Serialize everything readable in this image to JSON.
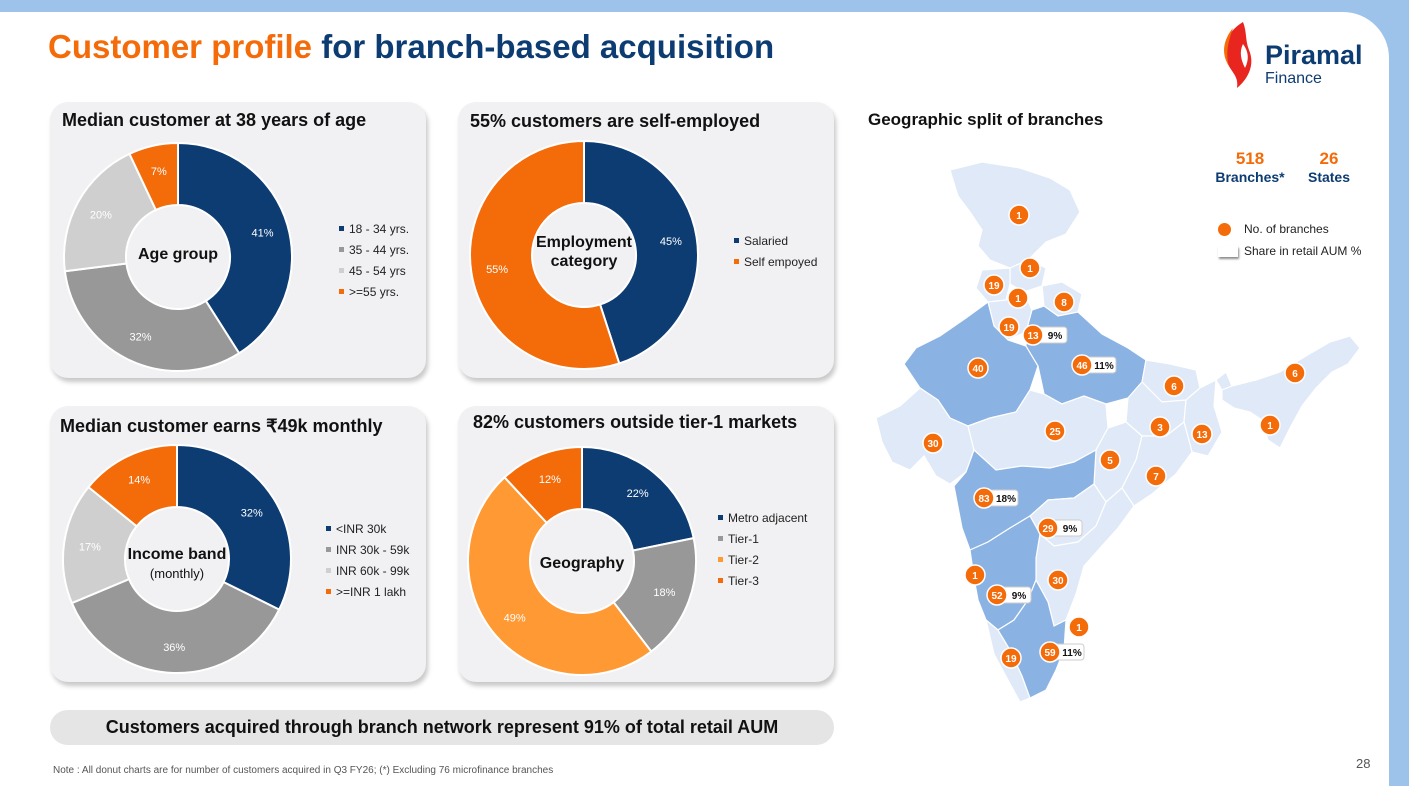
{
  "title": {
    "part1": "Customer profile",
    "part2": "for branch-based acquisition"
  },
  "logo": {
    "name": "Piramal",
    "sub": "Finance"
  },
  "colors": {
    "navy": "#0d3c72",
    "orange": "#f46b0a",
    "grey_dark": "#989898",
    "grey_light": "#cfcfcf",
    "tier2": "#ff9933",
    "map_dark": "#8ab2e3",
    "map_light": "#dfe9f7"
  },
  "cards": {
    "age": {
      "title": "Median customer at 38 years of age",
      "center": "Age group",
      "chart_data": {
        "type": "pie",
        "title": "Median customer at 38 years of age",
        "categories": [
          "18 - 34 yrs.",
          "35 - 44 yrs.",
          "45 - 54 yrs",
          ">=55 yrs."
        ],
        "values": [
          41,
          32,
          20,
          7
        ],
        "labels": [
          "41%",
          "32%",
          "20%",
          "7%"
        ],
        "colors": [
          "#0d3c72",
          "#989898",
          "#cfcfcf",
          "#f46b0a"
        ],
        "legend": "right"
      }
    },
    "employment": {
      "title": "55% customers are self-employed",
      "center_line1": "Employment",
      "center_line2": "category",
      "chart_data": {
        "type": "pie",
        "title": "55% customers are self-employed",
        "categories": [
          "Salaried",
          "Self empoyed"
        ],
        "values": [
          45,
          55
        ],
        "labels": [
          "45%",
          "55%"
        ],
        "colors": [
          "#0d3c72",
          "#f46b0a"
        ],
        "legend": "right"
      }
    },
    "income": {
      "title": "Median customer earns ₹49k monthly",
      "center": "Income band",
      "center_sub": "(monthly)",
      "chart_data": {
        "type": "pie",
        "title": "Median customer earns ₹49k monthly",
        "categories": [
          "<INR 30k",
          "INR 30k - 59k",
          "INR 60k - 99k",
          ">=INR 1 lakh"
        ],
        "values": [
          32,
          36,
          17,
          14
        ],
        "labels": [
          "32%",
          "36%",
          "17%",
          "14%"
        ],
        "colors": [
          "#0d3c72",
          "#989898",
          "#cfcfcf",
          "#f46b0a"
        ],
        "legend": "right"
      }
    },
    "geography": {
      "title": "82% customers outside tier-1 markets",
      "center": "Geography",
      "chart_data": {
        "type": "pie",
        "title": "82% customers outside tier-1 markets",
        "categories": [
          "Metro adjacent",
          "Tier-1",
          "Tier-2",
          "Tier-3"
        ],
        "values": [
          22,
          18,
          49,
          12
        ],
        "labels": [
          "22%",
          "18%",
          "49%",
          "12%"
        ],
        "colors": [
          "#0d3c72",
          "#989898",
          "#ff9933",
          "#f46b0a"
        ],
        "legend": "right"
      }
    }
  },
  "banner": "Customers acquired through branch network represent 91% of total retail AUM",
  "note": "Note : All donut charts are for number of customers acquired in Q3 FY26; (*) Excluding 76 microfinance branches",
  "page_number": "28",
  "map": {
    "title": "Geographic split of branches",
    "stats": [
      {
        "value": "518",
        "label": "Branches*"
      },
      {
        "value": "26",
        "label": "States"
      }
    ],
    "legend": {
      "branches": "No. of branches",
      "share": "Share in retail AUM %"
    },
    "markers": [
      {
        "count": "1"
      },
      {
        "count": "1"
      },
      {
        "count": "19"
      },
      {
        "count": "1"
      },
      {
        "count": "8"
      },
      {
        "count": "19"
      },
      {
        "count": "13",
        "share": "9%"
      },
      {
        "count": "40"
      },
      {
        "count": "46",
        "share": "11%"
      },
      {
        "count": "6"
      },
      {
        "count": "6"
      },
      {
        "count": "30"
      },
      {
        "count": "25"
      },
      {
        "count": "3"
      },
      {
        "count": "13"
      },
      {
        "count": "1"
      },
      {
        "count": "5"
      },
      {
        "count": "7"
      },
      {
        "count": "83",
        "share": "18%"
      },
      {
        "count": "29",
        "share": "9%"
      },
      {
        "count": "1"
      },
      {
        "count": "30"
      },
      {
        "count": "52",
        "share": "9%"
      },
      {
        "count": "1"
      },
      {
        "count": "59",
        "share": "11%"
      },
      {
        "count": "19"
      }
    ]
  }
}
